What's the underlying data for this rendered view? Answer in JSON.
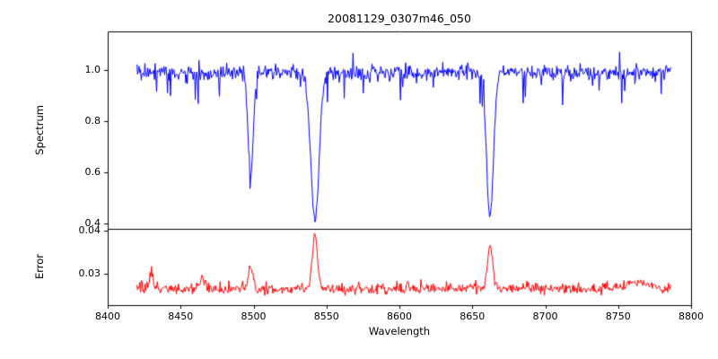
{
  "chart_data": {
    "type": "line",
    "title": "20081129_0307m46_050",
    "xlabel": "Wavelength",
    "xlim": [
      8400,
      8800
    ],
    "xticks": [
      8400,
      8450,
      8500,
      8550,
      8600,
      8650,
      8700,
      8750,
      8800
    ],
    "xticklabels": [
      "8400",
      "8450",
      "8500",
      "8550",
      "8600",
      "8650",
      "8700",
      "8750",
      "8800"
    ],
    "x_data_range": [
      8420,
      8786
    ],
    "n_points": 732,
    "seed": 20081129,
    "grid": false,
    "legend": "none",
    "panels": [
      {
        "ylabel": "Spectrum",
        "ylim": [
          0.38,
          1.15
        ],
        "yticks": [
          0.4,
          0.6,
          0.8,
          1.0
        ],
        "yticklabels": [
          "0.4",
          "0.6",
          "0.8",
          "1.0"
        ],
        "series": {
          "name": "spectrum",
          "color": "#0000ff",
          "baseline": 0.99,
          "noise_sigma": 0.015,
          "spike_down_prob": 0.05,
          "spike_down_max": 0.11,
          "spike_up_prob": 0.015,
          "spike_up_max": 0.09,
          "absorption_lines": [
            {
              "center": 8498.0,
              "depth": 0.4,
              "sigma": 1.8,
              "min_value": 0.6
            },
            {
              "center": 8542.1,
              "depth": 0.58,
              "sigma": 2.8,
              "min_value": 0.42
            },
            {
              "center": 8662.1,
              "depth": 0.56,
              "sigma": 2.4,
              "min_value": 0.44
            }
          ]
        }
      },
      {
        "ylabel": "Error",
        "ylim": [
          0.0225,
          0.0405
        ],
        "yticks": [
          0.03,
          0.04
        ],
        "yticklabels": [
          "0.03",
          "0.04"
        ],
        "series": {
          "name": "error",
          "color": "#ff0000",
          "baseline": 0.0263,
          "noise_sigma": 0.0006,
          "spike_up_prob": 0.06,
          "spike_up_max": 0.0018,
          "emission_features": [
            {
              "center": 8430.0,
              "height": 0.0035,
              "sigma": 1.5,
              "peak_value": 0.0305
            },
            {
              "center": 8465.0,
              "height": 0.0028,
              "sigma": 1.5,
              "peak_value": 0.0295
            },
            {
              "center": 8498.0,
              "height": 0.005,
              "sigma": 1.5,
              "peak_value": 0.0315
            },
            {
              "center": 8542.1,
              "height": 0.0125,
              "sigma": 1.8,
              "peak_value": 0.039
            },
            {
              "center": 8662.1,
              "height": 0.0105,
              "sigma": 1.8,
              "peak_value": 0.0372
            },
            {
              "center": 8762.0,
              "height": 0.002,
              "sigma": 6.0,
              "peak_value": 0.029
            }
          ]
        }
      }
    ]
  }
}
